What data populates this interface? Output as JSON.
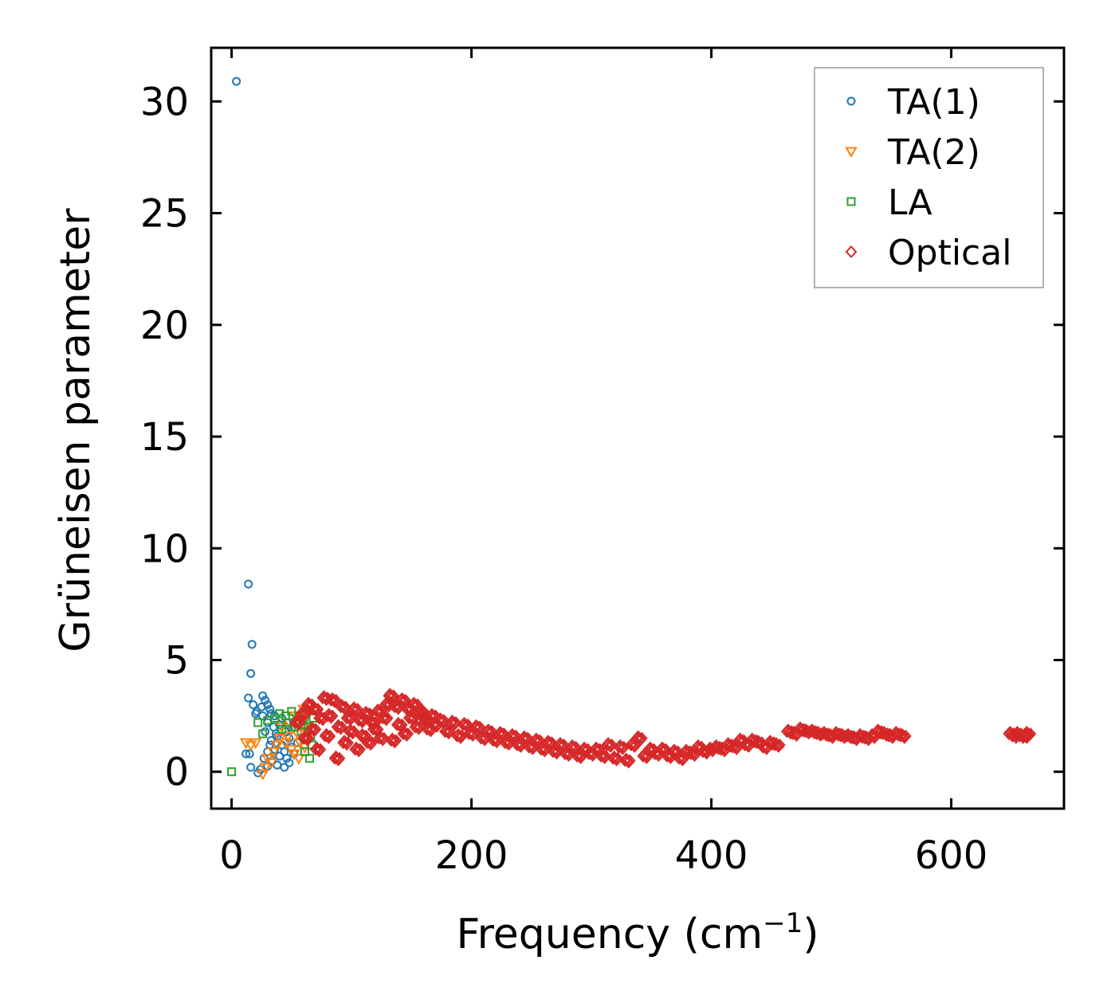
{
  "chart_data": {
    "type": "scatter",
    "title": "",
    "xlabel": "Frequency (cm",
    "xlabel_sup": "−1",
    "xlabel_close": ")",
    "ylabel": "Grüneisen parameter",
    "xlim": [
      -17,
      694
    ],
    "ylim": [
      -1.65,
      32.4
    ],
    "xticks": [
      0,
      200,
      400,
      600
    ],
    "yticks": [
      0,
      5,
      10,
      15,
      20,
      25,
      30
    ],
    "xtick_labels": [
      "0",
      "200",
      "400",
      "600"
    ],
    "ytick_labels": [
      "0",
      "5",
      "10",
      "15",
      "20",
      "25",
      "30"
    ],
    "grid": false,
    "legend_position": "top-right",
    "series": [
      {
        "name": "TA(1)",
        "marker": "circle",
        "color": "#1f77b4",
        "points": [
          [
            4,
            30.9
          ],
          [
            14,
            8.4
          ],
          [
            17,
            5.7
          ],
          [
            16,
            4.4
          ],
          [
            14,
            3.3
          ],
          [
            26,
            3.4
          ],
          [
            28,
            3.2
          ],
          [
            30,
            3.0
          ],
          [
            18,
            3.0
          ],
          [
            21,
            2.7
          ],
          [
            25,
            2.9
          ],
          [
            32,
            2.8
          ],
          [
            33,
            2.6
          ],
          [
            36,
            2.5
          ],
          [
            26,
            2.5
          ],
          [
            20,
            2.6
          ],
          [
            30,
            2.2
          ],
          [
            35,
            2.0
          ],
          [
            40,
            2.1
          ],
          [
            28,
            1.8
          ],
          [
            45,
            1.8
          ],
          [
            38,
            1.6
          ],
          [
            48,
            1.5
          ],
          [
            33,
            1.4
          ],
          [
            42,
            1.2
          ],
          [
            50,
            1.1
          ],
          [
            36,
            1.0
          ],
          [
            44,
            0.9
          ],
          [
            12,
            0.8
          ],
          [
            15,
            0.8
          ],
          [
            30,
            0.9
          ],
          [
            40,
            0.7
          ],
          [
            46,
            0.6
          ],
          [
            34,
            0.5
          ],
          [
            48,
            0.4
          ],
          [
            38,
            0.3
          ],
          [
            44,
            0.2
          ],
          [
            16,
            0.2
          ],
          [
            24,
            0.1
          ],
          [
            30,
            0.25
          ],
          [
            22,
            -0.05
          ],
          [
            52,
            0.8
          ],
          [
            55,
            1.3
          ],
          [
            50,
            1.9
          ],
          [
            46,
            2.2
          ],
          [
            42,
            2.4
          ],
          [
            37,
            1.7
          ],
          [
            32,
            1.2
          ],
          [
            27,
            0.6
          ],
          [
            53,
            2.0
          ]
        ]
      },
      {
        "name": "TA(2)",
        "marker": "triangle-down",
        "color": "#ff7f0e",
        "points": [
          [
            12,
            1.3
          ],
          [
            16,
            1.2
          ],
          [
            20,
            1.3
          ],
          [
            26,
            -0.1
          ],
          [
            30,
            0.6
          ],
          [
            35,
            0.9
          ],
          [
            40,
            1.5
          ],
          [
            45,
            1.3
          ],
          [
            50,
            1.0
          ],
          [
            55,
            1.7
          ],
          [
            58,
            2.0
          ],
          [
            60,
            2.8
          ],
          [
            62,
            2.4
          ],
          [
            57,
            1.3
          ],
          [
            52,
            0.8
          ],
          [
            48,
            2.2
          ],
          [
            42,
            2.0
          ],
          [
            38,
            1.2
          ],
          [
            33,
            0.4
          ],
          [
            28,
            0.2
          ],
          [
            61,
            1.1
          ],
          [
            63,
            1.8
          ],
          [
            47,
            1.6
          ],
          [
            53,
            2.5
          ],
          [
            56,
            0.6
          ]
        ]
      },
      {
        "name": "LA",
        "marker": "square",
        "color": "#2ca02c",
        "points": [
          [
            0,
            0.0
          ],
          [
            22,
            2.2
          ],
          [
            26,
            1.7
          ],
          [
            30,
            2.3
          ],
          [
            36,
            2.4
          ],
          [
            40,
            2.6
          ],
          [
            45,
            2.5
          ],
          [
            50,
            2.7
          ],
          [
            55,
            2.3
          ],
          [
            60,
            2.1
          ],
          [
            63,
            1.5
          ],
          [
            65,
            0.6
          ],
          [
            67,
            1.2
          ],
          [
            68,
            2.4
          ],
          [
            64,
            2.0
          ],
          [
            58,
            1.8
          ],
          [
            52,
            2.0
          ],
          [
            47,
            2.2
          ],
          [
            42,
            1.9
          ],
          [
            61,
            0.9
          ],
          [
            66,
            1.6
          ],
          [
            62,
            2.6
          ]
        ]
      },
      {
        "name": "Optical",
        "marker": "diamond",
        "color": "#d62728",
        "points": [
          [
            55,
            2.2
          ],
          [
            60,
            2.6
          ],
          [
            62,
            1.5
          ],
          [
            65,
            3.0
          ],
          [
            68,
            1.9
          ],
          [
            70,
            2.8
          ],
          [
            72,
            1.0
          ],
          [
            75,
            2.4
          ],
          [
            78,
            3.3
          ],
          [
            80,
            1.6
          ],
          [
            82,
            2.5
          ],
          [
            85,
            3.2
          ],
          [
            88,
            0.6
          ],
          [
            90,
            2.0
          ],
          [
            93,
            2.9
          ],
          [
            95,
            1.3
          ],
          [
            98,
            2.4
          ],
          [
            100,
            1.8
          ],
          [
            103,
            2.8
          ],
          [
            105,
            1.0
          ],
          [
            108,
            2.3
          ],
          [
            110,
            1.6
          ],
          [
            113,
            2.6
          ],
          [
            115,
            1.3
          ],
          [
            118,
            2.2
          ],
          [
            120,
            1.9
          ],
          [
            123,
            2.7
          ],
          [
            125,
            1.5
          ],
          [
            128,
            2.4
          ],
          [
            130,
            3.0
          ],
          [
            133,
            3.4
          ],
          [
            135,
            1.4
          ],
          [
            138,
            2.9
          ],
          [
            140,
            2.1
          ],
          [
            143,
            3.2
          ],
          [
            145,
            1.7
          ],
          [
            148,
            2.8
          ],
          [
            150,
            2.4
          ],
          [
            153,
            3.0
          ],
          [
            155,
            2.0
          ],
          [
            158,
            2.7
          ],
          [
            160,
            2.5
          ],
          [
            163,
            2.3
          ],
          [
            165,
            1.9
          ],
          [
            168,
            2.5
          ],
          [
            170,
            2.1
          ],
          [
            175,
            2.3
          ],
          [
            180,
            1.8
          ],
          [
            185,
            2.2
          ],
          [
            190,
            1.6
          ],
          [
            195,
            2.1
          ],
          [
            200,
            1.7
          ],
          [
            205,
            2.0
          ],
          [
            210,
            1.5
          ],
          [
            215,
            1.8
          ],
          [
            220,
            1.4
          ],
          [
            225,
            1.7
          ],
          [
            230,
            1.3
          ],
          [
            235,
            1.6
          ],
          [
            240,
            1.2
          ],
          [
            245,
            1.5
          ],
          [
            250,
            1.1
          ],
          [
            255,
            1.4
          ],
          [
            260,
            1.0
          ],
          [
            265,
            1.3
          ],
          [
            270,
            0.9
          ],
          [
            275,
            1.2
          ],
          [
            280,
            0.8
          ],
          [
            285,
            1.1
          ],
          [
            290,
            0.7
          ],
          [
            295,
            1.0
          ],
          [
            300,
            0.8
          ],
          [
            305,
            1.0
          ],
          [
            310,
            0.7
          ],
          [
            315,
            1.2
          ],
          [
            320,
            0.6
          ],
          [
            325,
            1.1
          ],
          [
            330,
            0.5
          ],
          [
            335,
            1.2
          ],
          [
            340,
            1.5
          ],
          [
            345,
            0.7
          ],
          [
            350,
            1.0
          ],
          [
            355,
            0.8
          ],
          [
            360,
            1.0
          ],
          [
            365,
            0.7
          ],
          [
            370,
            0.9
          ],
          [
            375,
            0.6
          ],
          [
            380,
            0.9
          ],
          [
            385,
            0.8
          ],
          [
            390,
            1.1
          ],
          [
            395,
            0.9
          ],
          [
            400,
            1.0
          ],
          [
            405,
            1.1
          ],
          [
            410,
            1.0
          ],
          [
            415,
            1.2
          ],
          [
            420,
            1.1
          ],
          [
            425,
            1.4
          ],
          [
            430,
            1.2
          ],
          [
            435,
            1.4
          ],
          [
            440,
            1.3
          ],
          [
            445,
            1.1
          ],
          [
            450,
            1.3
          ],
          [
            455,
            1.2
          ],
          [
            465,
            1.8
          ],
          [
            470,
            1.7
          ],
          [
            475,
            1.9
          ],
          [
            480,
            1.8
          ],
          [
            485,
            1.8
          ],
          [
            490,
            1.7
          ],
          [
            495,
            1.7
          ],
          [
            500,
            1.6
          ],
          [
            505,
            1.7
          ],
          [
            510,
            1.6
          ],
          [
            515,
            1.6
          ],
          [
            520,
            1.5
          ],
          [
            525,
            1.6
          ],
          [
            530,
            1.5
          ],
          [
            535,
            1.6
          ],
          [
            540,
            1.8
          ],
          [
            545,
            1.7
          ],
          [
            550,
            1.6
          ],
          [
            555,
            1.7
          ],
          [
            560,
            1.6
          ],
          [
            650,
            1.7
          ],
          [
            653,
            1.6
          ],
          [
            656,
            1.7
          ],
          [
            659,
            1.6
          ],
          [
            662,
            1.6
          ],
          [
            664,
            1.7
          ]
        ]
      }
    ]
  }
}
